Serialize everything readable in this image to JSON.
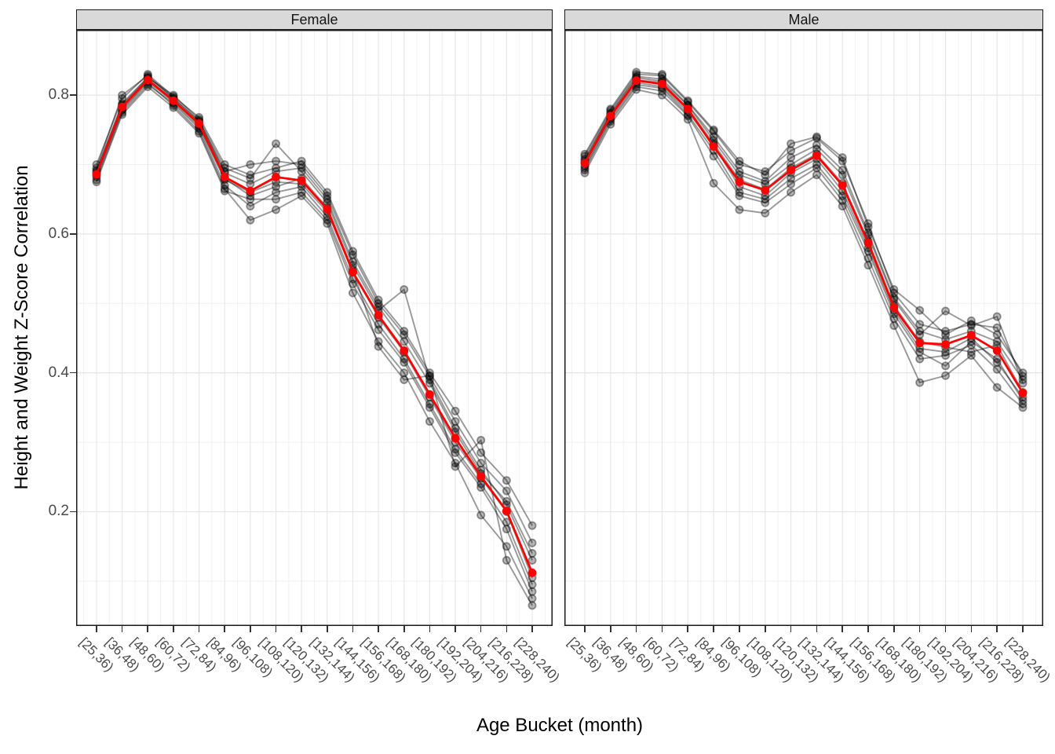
{
  "figure": {
    "y_axis_title": "Height and Weight Z-Score Correlation",
    "x_axis_title": "Age Bucket (month)"
  },
  "chart_data": {
    "type": "line",
    "title": "",
    "xlabel": "Age Bucket (month)",
    "ylabel": "Height and Weight Z-Score Correlation",
    "facet_labels": [
      "Female",
      "Male"
    ],
    "x_categories": [
      "[25,36)",
      "[36,48)",
      "[48,60)",
      "[60,72)",
      "[72,84)",
      "[84,96)",
      "[96,108)",
      "[108,120)",
      "[120,132)",
      "[132,144)",
      "[144,156)",
      "[156,168)",
      "[168,180)",
      "[180,192)",
      "[192,204)",
      "[204,216)",
      "[216,228)",
      "[228,240)"
    ],
    "y_axis": {
      "tick_labels": [
        "0.8",
        "0.6",
        "0.4",
        "0.2"
      ],
      "tick_values": [
        0.8,
        0.6,
        0.4,
        0.2
      ],
      "minor_values": [
        0.7,
        0.5,
        0.3,
        0.1
      ],
      "range": [
        0.035,
        0.894
      ],
      "grid": "on"
    },
    "legend": "none",
    "colors": {
      "mean_line": "#ff0000",
      "individual_line": "rgba(0,0,0,0.40)",
      "individual_point_fill": "rgba(0,0,0,0.28)",
      "individual_point_stroke": "rgba(0,0,0,0.40)",
      "grid_major": "#e6e6e6",
      "grid_minor": "#f1f1f1",
      "strip_fill": "#d9d9d9",
      "panel_border": "#1a1a1a",
      "axis_text": "#4a4a4a"
    },
    "facets": [
      {
        "label": "Female",
        "mean_series": [
          0.686,
          0.783,
          0.822,
          0.792,
          0.759,
          0.682,
          0.662,
          0.682,
          0.677,
          0.636,
          0.545,
          0.483,
          0.432,
          0.369,
          0.306,
          0.251,
          0.201,
          0.112
        ],
        "individual_series": [
          [
            0.695,
            0.8,
            0.828,
            0.795,
            0.762,
            0.69,
            0.7,
            0.705,
            0.7,
            0.655,
            0.57,
            0.5,
            0.455,
            0.395,
            0.33,
            0.27,
            0.23,
            0.155
          ],
          [
            0.678,
            0.775,
            0.815,
            0.788,
            0.752,
            0.67,
            0.64,
            0.66,
            0.668,
            0.625,
            0.535,
            0.47,
            0.42,
            0.355,
            0.29,
            0.24,
            0.185,
            0.095
          ],
          [
            0.69,
            0.786,
            0.825,
            0.8,
            0.765,
            0.695,
            0.68,
            0.73,
            0.69,
            0.645,
            0.555,
            0.49,
            0.52,
            0.39,
            0.32,
            0.26,
            0.21,
            0.13
          ],
          [
            0.682,
            0.778,
            0.818,
            0.785,
            0.748,
            0.665,
            0.62,
            0.635,
            0.655,
            0.615,
            0.515,
            0.445,
            0.4,
            0.33,
            0.27,
            0.195,
            0.15,
            0.075
          ],
          [
            0.7,
            0.795,
            0.83,
            0.798,
            0.768,
            0.7,
            0.685,
            0.695,
            0.705,
            0.66,
            0.575,
            0.505,
            0.46,
            0.4,
            0.345,
            0.285,
            0.245,
            0.18
          ],
          [
            0.675,
            0.772,
            0.812,
            0.782,
            0.745,
            0.662,
            0.65,
            0.65,
            0.66,
            0.62,
            0.528,
            0.462,
            0.415,
            0.35,
            0.285,
            0.235,
            0.175,
            0.085
          ],
          [
            0.692,
            0.788,
            0.826,
            0.796,
            0.763,
            0.688,
            0.672,
            0.69,
            0.695,
            0.65,
            0.56,
            0.495,
            0.445,
            0.385,
            0.315,
            0.255,
            0.215,
            0.14
          ],
          [
            0.685,
            0.78,
            0.82,
            0.79,
            0.755,
            0.678,
            0.66,
            0.675,
            0.672,
            0.632,
            0.545,
            0.48,
            0.43,
            0.365,
            0.3,
            0.248,
            0.2,
            0.105
          ],
          [
            0.688,
            0.784,
            0.823,
            0.793,
            0.757,
            0.68,
            0.655,
            0.668,
            0.68,
            0.638,
            0.548,
            0.438,
            0.39,
            0.396,
            0.265,
            0.303,
            0.13,
            0.065
          ]
        ]
      },
      {
        "label": "Male",
        "mean_series": [
          0.702,
          0.77,
          0.821,
          0.816,
          0.78,
          0.726,
          0.675,
          0.663,
          0.692,
          0.713,
          0.67,
          0.587,
          0.494,
          0.443,
          0.441,
          0.454,
          0.432,
          0.371
        ],
        "individual_series": [
          [
            0.712,
            0.778,
            0.83,
            0.828,
            0.79,
            0.748,
            0.7,
            0.69,
            0.72,
            0.738,
            0.705,
            0.615,
            0.515,
            0.47,
            0.46,
            0.47,
            0.465,
            0.395
          ],
          [
            0.692,
            0.762,
            0.812,
            0.806,
            0.77,
            0.712,
            0.655,
            0.645,
            0.672,
            0.695,
            0.648,
            0.565,
            0.478,
            0.42,
            0.425,
            0.44,
            0.405,
            0.355
          ],
          [
            0.706,
            0.773,
            0.825,
            0.82,
            0.785,
            0.735,
            0.685,
            0.672,
            0.7,
            0.722,
            0.685,
            0.598,
            0.505,
            0.455,
            0.489,
            0.468,
            0.481,
            0.385
          ],
          [
            0.688,
            0.758,
            0.808,
            0.8,
            0.765,
            0.673,
            0.635,
            0.63,
            0.66,
            0.685,
            0.64,
            0.555,
            0.468,
            0.386,
            0.396,
            0.425,
            0.379,
            0.35
          ],
          [
            0.715,
            0.78,
            0.833,
            0.83,
            0.792,
            0.75,
            0.705,
            0.685,
            0.73,
            0.74,
            0.71,
            0.61,
            0.52,
            0.49,
            0.455,
            0.475,
            0.455,
            0.4
          ],
          [
            0.695,
            0.765,
            0.815,
            0.81,
            0.772,
            0.72,
            0.66,
            0.65,
            0.68,
            0.7,
            0.655,
            0.575,
            0.485,
            0.43,
            0.41,
            0.445,
            0.42,
            0.36
          ],
          [
            0.708,
            0.775,
            0.827,
            0.823,
            0.786,
            0.74,
            0.69,
            0.676,
            0.71,
            0.728,
            0.692,
            0.602,
            0.508,
            0.46,
            0.448,
            0.46,
            0.445,
            0.39
          ],
          [
            0.698,
            0.768,
            0.818,
            0.812,
            0.776,
            0.728,
            0.668,
            0.655,
            0.688,
            0.708,
            0.662,
            0.58,
            0.49,
            0.435,
            0.43,
            0.45,
            0.415,
            0.365
          ],
          [
            0.703,
            0.771,
            0.822,
            0.818,
            0.781,
            0.73,
            0.678,
            0.664,
            0.695,
            0.715,
            0.673,
            0.59,
            0.497,
            0.445,
            0.437,
            0.43,
            0.44,
            0.372
          ]
        ]
      }
    ]
  }
}
